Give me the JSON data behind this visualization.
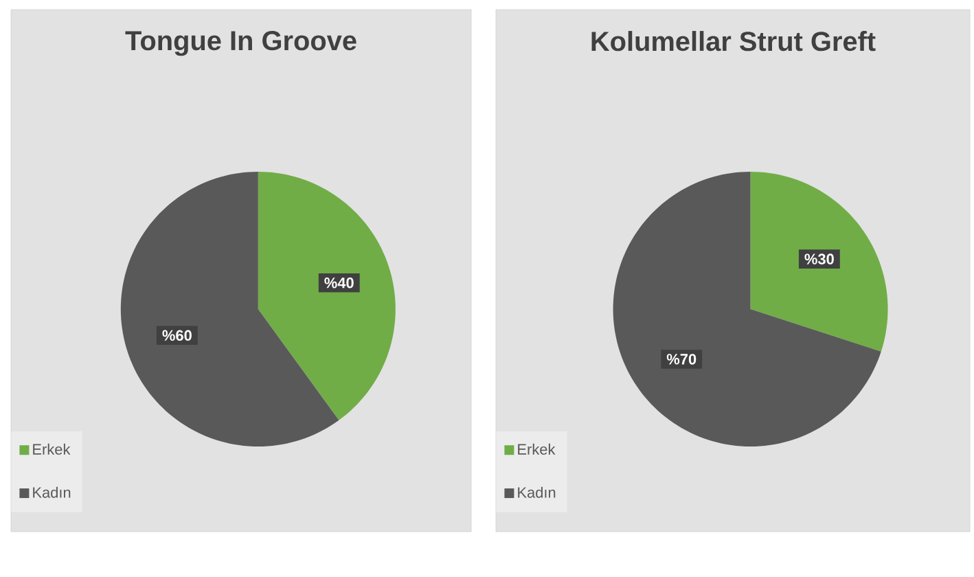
{
  "chart_data": [
    {
      "type": "pie",
      "title": "Tongue In Groove",
      "categories": [
        "Erkek",
        "Kadın"
      ],
      "values": [
        40,
        60
      ],
      "colors": [
        "#70ad47",
        "#595959"
      ],
      "value_labels": [
        "%40",
        "%60"
      ],
      "legend": "bottom left"
    },
    {
      "type": "pie",
      "title": "Kolumellar Strut Greft",
      "categories": [
        "Erkek",
        "Kadın"
      ],
      "values": [
        30,
        70
      ],
      "colors": [
        "#70ad47",
        "#595959"
      ],
      "value_labels": [
        "%30",
        "%70"
      ],
      "legend": "bottom left"
    }
  ]
}
